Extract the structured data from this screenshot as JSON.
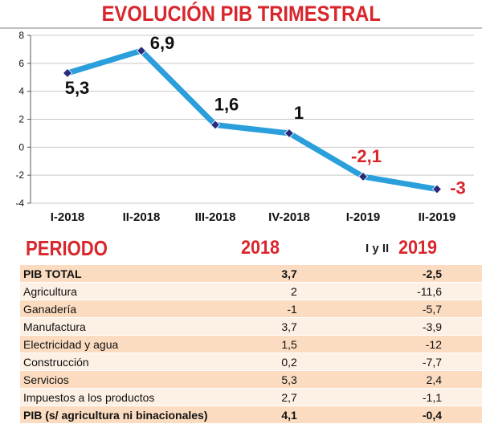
{
  "title": "EVOLUCIÓN PIB TRIMESTRAL",
  "chart_data": {
    "type": "line",
    "categories": [
      "I-2018",
      "II-2018",
      "III-2018",
      "IV-2018",
      "I-2019",
      "II-2019"
    ],
    "series": [
      {
        "values": [
          5.3,
          6.9,
          1.6,
          1,
          -2.1,
          -3
        ]
      }
    ],
    "data_labels": [
      "5,3",
      "6,9",
      "1,6",
      "1",
      "-2,1",
      "-3"
    ],
    "ylim": [
      -4,
      8
    ],
    "yticks": [
      -4,
      -2,
      0,
      2,
      4,
      6,
      8
    ],
    "ytick_labels": [
      "-4",
      "-2",
      "0",
      "2",
      "4",
      "6",
      "8"
    ],
    "grid": "horizontal",
    "line_color": "#2a9fdc",
    "marker_color": "#2a2a7a",
    "positive_label_color": "#111111",
    "negative_label_color": "#d8262c"
  },
  "table": {
    "header": {
      "periodo": "PERIODO",
      "col2018": "2018",
      "iyii": "I y II",
      "col2019": "2019"
    },
    "rows": [
      {
        "label": "PIB TOTAL",
        "v2018": "3,7",
        "v2019": "-2,5",
        "bold": true
      },
      {
        "label": "Agricultura",
        "v2018": "2",
        "v2019": "-11,6",
        "bold": false
      },
      {
        "label": "Ganadería",
        "v2018": "-1",
        "v2019": "-5,7",
        "bold": false
      },
      {
        "label": "Manufactura",
        "v2018": "3,7",
        "v2019": "-3,9",
        "bold": false
      },
      {
        "label": "Electricidad y agua",
        "v2018": "1,5",
        "v2019": "-12",
        "bold": false
      },
      {
        "label": "Construcción",
        "v2018": "0,2",
        "v2019": "-7,7",
        "bold": false
      },
      {
        "label": "Servicios",
        "v2018": "5,3",
        "v2019": "2,4",
        "bold": false
      },
      {
        "label": "Impuestos a los productos",
        "v2018": "2,7",
        "v2019": "-1,1",
        "bold": false
      },
      {
        "label": "PIB (s/ agricultura ni binacionales)",
        "v2018": "4,1",
        "v2019": "-0,4",
        "bold": true
      }
    ]
  },
  "colors": {
    "accent": "#d8262c",
    "row_odd": "#fbdcc0",
    "row_even": "#fdf0e4"
  }
}
